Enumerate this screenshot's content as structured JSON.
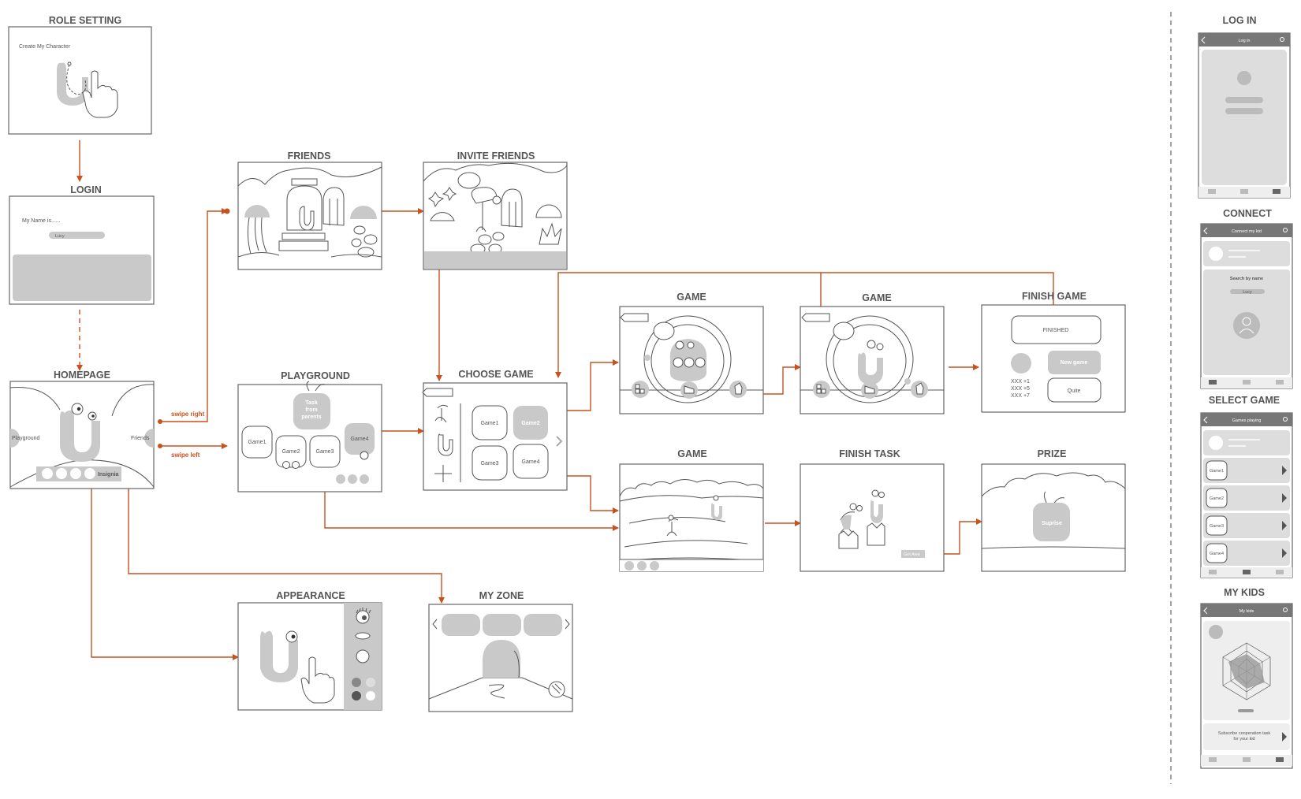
{
  "titles": {
    "role_setting": "ROLE SETTING",
    "login": "LOGIN",
    "homepage": "HOMEPAGE",
    "friends": "FRIENDS",
    "invite_friends": "INVITE FRIENDS",
    "playground": "PLAYGROUND",
    "choose_game": "CHOOSE GAME",
    "game1": "GAME",
    "game2": "GAME",
    "finish_game": "FINISH GAME",
    "game3": "GAME",
    "finish_task": "FINISH TASK",
    "prize": "PRIZE",
    "appearance": "APPEARANCE",
    "my_zone": "MY ZONE",
    "phone_login": "LOG IN",
    "phone_connect": "CONNECT",
    "phone_select_game": "SELECT GAME",
    "phone_my_kids": "MY KIDS"
  },
  "role_setting": {
    "caption": "Create My Character"
  },
  "login": {
    "prompt": "My Name is......",
    "input_value": "Lucy"
  },
  "homepage": {
    "left": "Playground",
    "right": "Friends",
    "insignia": "Insignia"
  },
  "edges": {
    "swipe_right": "swipe right",
    "swipe_left": "swipe left"
  },
  "playground": {
    "task": [
      "Task",
      "from",
      "parents"
    ],
    "games": [
      "Game1",
      "Game2",
      "Game3",
      "Game4"
    ]
  },
  "choose_game": {
    "games": [
      "Game1",
      "Game2",
      "Game3",
      "Game4"
    ]
  },
  "finish_game": {
    "finished": "FINISHED",
    "new_game": "New game",
    "quite": "Quite",
    "scores": [
      "XXX  +1",
      "XXX  +5",
      "XXX  +7"
    ]
  },
  "finish_task": {
    "get_award": "Get Awa"
  },
  "prize": {
    "label": "Suprise"
  },
  "phone": {
    "login_header": "Log in",
    "connect_header": "Connect my kid",
    "connect_search": "Search by name",
    "connect_input": "Lucy",
    "select_header": "Games playing",
    "select_games": [
      "Game1",
      "Game2",
      "Game3",
      "Game4"
    ],
    "kids_header": "My kids",
    "kids_cta": [
      "Subscribe cooperation task",
      "for your kid"
    ]
  },
  "colors": {
    "accent": "#c8521e",
    "fill": "#c9c9c9",
    "stroke": "#666666"
  }
}
